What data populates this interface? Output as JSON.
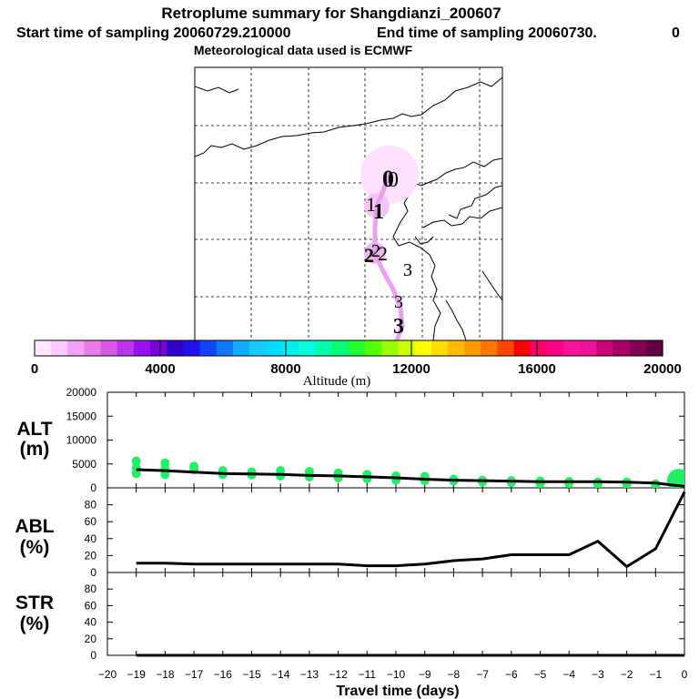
{
  "chart_data": {
    "type": "figure",
    "title": "Retroplume summary for Shangdianzi_200607",
    "subtitle_start": "Start time of sampling 20060729.210000",
    "subtitle_end": "End time of sampling 20060730.",
    "subtitle_end_suffix": "0",
    "subtitle_met": "Meteorological data used is ECMWF",
    "map": {
      "plume_labels": [
        {
          "label": "0",
          "day": 0
        },
        {
          "label": "1",
          "day": 1
        },
        {
          "label": "2",
          "day": 2
        },
        {
          "label": "3",
          "day": 3
        }
      ]
    },
    "colorbar": {
      "title": "Altitude (m)",
      "min": 0,
      "max": 20000,
      "ticks": [
        "0",
        "4000",
        "8000",
        "12000",
        "16000",
        "20000"
      ],
      "tick_values": [
        0,
        4000,
        8000,
        12000,
        16000,
        20000
      ],
      "colors": [
        "#ffe8ff",
        "#ffc8ff",
        "#f4a0f4",
        "#e87ce8",
        "#d858e8",
        "#bb33ee",
        "#9911ee",
        "#7700dd",
        "#3300cc",
        "#2211ee",
        "#1144ff",
        "#1177ff",
        "#11aaff",
        "#11ccff",
        "#00ddff",
        "#00eeee",
        "#00ffdd",
        "#00ffaa",
        "#00ff77",
        "#22ff33",
        "#55ff00",
        "#99ff00",
        "#ccff00",
        "#ffff00",
        "#ffdd00",
        "#ffbb00",
        "#ff9900",
        "#ff7700",
        "#ff4400",
        "#ff0000",
        "#ff0066",
        "#ff0088",
        "#ff1199",
        "#ee1199",
        "#cc0077",
        "#aa0066",
        "#880055",
        "#660044"
      ]
    },
    "x_axis": {
      "label": "Travel time (days)",
      "range": [
        -20,
        0
      ],
      "ticks": [
        -20,
        -19,
        -18,
        -17,
        -16,
        -15,
        -14,
        -13,
        -12,
        -11,
        -10,
        -9,
        -8,
        -7,
        -6,
        -5,
        -4,
        -3,
        -2,
        -1,
        0
      ],
      "tick_labels": [
        "−20",
        "−19",
        "−18",
        "−17",
        "−16",
        "−15",
        "−14",
        "−13",
        "−12",
        "−11",
        "−10",
        "−9",
        "−8",
        "−7",
        "−6",
        "−5",
        "−4",
        "−3",
        "−2",
        "−1",
        "0"
      ]
    },
    "panels": [
      {
        "name": "ALT",
        "unit": "(m)",
        "type": "line",
        "ylim": [
          0,
          20000
        ],
        "yticks": [
          0,
          5000,
          10000,
          15000,
          20000
        ],
        "ytick_labels": [
          "0",
          "5000",
          "10000",
          "15000",
          "20000"
        ],
        "x": [
          -19,
          -18,
          -17,
          -16,
          -15,
          -14,
          -13,
          -12,
          -11,
          -10,
          -9,
          -8,
          -7,
          -6,
          -5,
          -4,
          -3,
          -2,
          -1,
          0
        ],
        "line": [
          3800,
          3600,
          3300,
          3000,
          2900,
          2800,
          2600,
          2500,
          2300,
          2100,
          1800,
          1600,
          1500,
          1400,
          1300,
          1300,
          1300,
          1200,
          1000,
          300
        ],
        "dots": [
          {
            "x": -19,
            "y": [
              5600,
              4200,
              3000
            ]
          },
          {
            "x": -18,
            "y": [
              5200,
              4000,
              2800
            ]
          },
          {
            "x": -17,
            "y": [
              4500,
              3800
            ]
          },
          {
            "x": -16,
            "y": [
              3600,
              2800
            ]
          },
          {
            "x": -15,
            "y": [
              3300,
              2700
            ]
          },
          {
            "x": -14,
            "y": [
              3600,
              2500
            ]
          },
          {
            "x": -13,
            "y": [
              3400,
              2300
            ]
          },
          {
            "x": -12,
            "y": [
              3100,
              2100
            ]
          },
          {
            "x": -11,
            "y": [
              2800,
              1900
            ]
          },
          {
            "x": -10,
            "y": [
              2500,
              1600
            ]
          },
          {
            "x": -9,
            "y": [
              2400,
              1500
            ]
          },
          {
            "x": -8,
            "y": [
              1800,
              1400
            ]
          },
          {
            "x": -7,
            "y": [
              1600,
              1200
            ]
          },
          {
            "x": -6,
            "y": [
              1500,
              1100
            ]
          },
          {
            "x": -5,
            "y": [
              1400,
              900
            ]
          },
          {
            "x": -4,
            "y": [
              1300,
              900
            ]
          },
          {
            "x": -3,
            "y": [
              1200,
              800
            ]
          },
          {
            "x": -2,
            "y": [
              1200,
              800
            ]
          },
          {
            "x": -1,
            "y": [
              800,
              500
            ]
          },
          {
            "x": 0,
            "y": [
              1500
            ]
          }
        ]
      },
      {
        "name": "ABL",
        "unit": "(%)",
        "type": "line",
        "ylim": [
          0,
          100
        ],
        "yticks": [
          0,
          20,
          40,
          60,
          80
        ],
        "ytick_labels": [
          "0",
          "20",
          "40",
          "60",
          "80"
        ],
        "x": [
          -19,
          -18,
          -17,
          -16,
          -15,
          -14,
          -13,
          -12,
          -11,
          -10,
          -9,
          -8,
          -7,
          -6,
          -5,
          -4,
          -3,
          -2,
          -1,
          0
        ],
        "line": [
          11,
          11,
          10,
          10,
          10,
          10,
          10,
          10,
          8,
          8,
          10,
          14,
          16,
          21,
          21,
          21,
          37,
          7,
          28,
          95
        ]
      },
      {
        "name": "STR",
        "unit": "(%)",
        "type": "line",
        "ylim": [
          0,
          100
        ],
        "yticks": [
          0,
          20,
          40,
          60,
          80
        ],
        "ytick_labels": [
          "0",
          "20",
          "40",
          "60",
          "80"
        ],
        "x": [
          -19,
          -18,
          -17,
          -16,
          -15,
          -14,
          -13,
          -12,
          -11,
          -10,
          -9,
          -8,
          -7,
          -6,
          -5,
          -4,
          -3,
          -2,
          -1,
          0
        ],
        "line": [
          0,
          0,
          0,
          0,
          0,
          0,
          0,
          0,
          0,
          0,
          0,
          0,
          0,
          0,
          0,
          0,
          0,
          0,
          0,
          0
        ]
      }
    ]
  }
}
